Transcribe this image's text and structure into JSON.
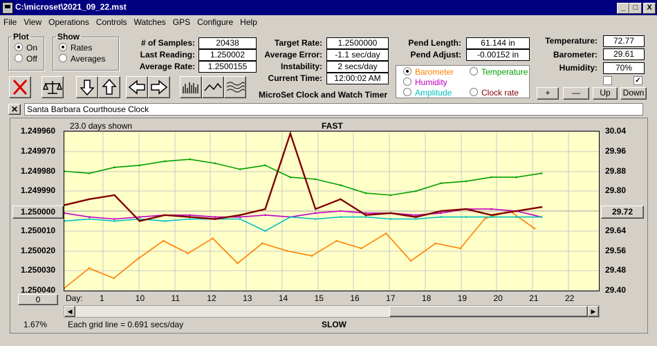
{
  "window": {
    "title": "C:\\microset\\2021_09_22.mst",
    "buttons": [
      "_",
      "□",
      "X"
    ]
  },
  "menu": [
    "File",
    "View",
    "Operations",
    "Controls",
    "Watches",
    "GPS",
    "Configure",
    "Help"
  ],
  "plot_group": {
    "legend": "Plot",
    "options": [
      "On",
      "Off"
    ],
    "selected": "On"
  },
  "show_group": {
    "legend": "Show",
    "options": [
      "Rates",
      "Averages"
    ],
    "selected": "Rates"
  },
  "stats1": {
    "samples_label": "# of Samples:",
    "samples": "20438",
    "last_label": "Last Reading:",
    "last": "1.250002",
    "avg_label": "Average Rate:",
    "avg": "1.2500155"
  },
  "stats2": {
    "target_label": "Target Rate:",
    "target": "1.2500000",
    "error_label": "Average Error:",
    "error": "-1.1 sec/day",
    "instab_label": "Instability:",
    "instab": "2 secs/day",
    "time_label": "Current Time:",
    "time": "12:00:02 AM"
  },
  "pend": {
    "length_label": "Pend Length:",
    "length": "61.144 in",
    "adjust_label": "Pend Adjust:",
    "adjust": "-0.00152 in"
  },
  "env": {
    "temp_label": "Temperature:",
    "temp": "72.77",
    "baro_label": "Barometer:",
    "baro": "29.61",
    "hum_label": "Humidity:",
    "hum": "70%"
  },
  "app_caption": "MicroSet Clock and Watch Timer",
  "series_select": {
    "selected": "Barometer",
    "items": [
      {
        "name": "Barometer",
        "color": "#ff8000"
      },
      {
        "name": "Temperature",
        "color": "#00a000"
      },
      {
        "name": "Humidity",
        "color": "#c000c0"
      },
      {
        "name": "Amplitude",
        "color": "#00c0c0"
      },
      {
        "name": "Clock rate",
        "color": "#800000"
      }
    ]
  },
  "scale_buttons": [
    "+",
    "—",
    "Up",
    "Down"
  ],
  "watch_name": "Santa Barbara Courthouse Clock",
  "chart": {
    "days_shown": "23.0 days shown",
    "top_label": "FAST",
    "bottom_label": "SLOW",
    "grid_note": "Each grid line = 0.691 secs/day",
    "percent": "1.67%",
    "day_prefix": "Day:",
    "left_ref_button": "1.250000",
    "right_ref_button": "29.72",
    "bottom_ref_button": "0"
  },
  "chart_data": {
    "type": "line",
    "xlabel": "Day",
    "x_ticks": [
      "1",
      "10",
      "11",
      "12",
      "13",
      "14",
      "15",
      "16",
      "17",
      "18",
      "19",
      "20",
      "21",
      "22"
    ],
    "y_left_ticks": [
      "1.249960",
      "1.249970",
      "1.249980",
      "1.249990",
      "1.250000",
      "1.250010",
      "1.250020",
      "1.250030",
      "1.250040"
    ],
    "y_right_ticks": [
      "30.04",
      "29.96",
      "29.88",
      "29.80",
      "29.72",
      "29.64",
      "29.56",
      "29.48",
      "29.40"
    ],
    "ylim_left": [
      1.25004,
      1.24996
    ],
    "ylim_right": [
      29.4,
      30.04
    ],
    "series": [
      {
        "name": "Temperature",
        "color": "#00a000",
        "values": [
          1.24998,
          1.249981,
          1.249978,
          1.249977,
          1.249975,
          1.249974,
          1.249976,
          1.249979,
          1.249977,
          1.249983,
          1.249984,
          1.249987,
          1.249991,
          1.249992,
          1.24999,
          1.249986,
          1.249985,
          1.249983,
          1.249983,
          1.249981
        ]
      },
      {
        "name": "Barometer",
        "color": "#ff8000",
        "values": [
          29.41,
          29.49,
          29.45,
          29.53,
          29.6,
          29.55,
          29.61,
          29.51,
          29.59,
          29.56,
          29.54,
          29.6,
          29.57,
          29.63,
          29.52,
          29.59,
          29.57,
          29.69,
          29.72,
          29.65
        ]
      },
      {
        "name": "Humidity",
        "color": "#c000c0",
        "values": [
          1.250001,
          1.250003,
          1.250004,
          1.250003,
          1.250002,
          1.250002,
          1.250003,
          1.250003,
          1.250002,
          1.250003,
          1.250001,
          1.25,
          1.250001,
          1.250001,
          1.250002,
          1.250001,
          1.249999,
          1.249999,
          1.25,
          1.250003
        ]
      },
      {
        "name": "Amplitude",
        "color": "#00c0c0",
        "values": [
          1.250005,
          1.250004,
          1.250005,
          1.250004,
          1.250005,
          1.250004,
          1.250004,
          1.250004,
          1.25001,
          1.250003,
          1.250004,
          1.250003,
          1.250003,
          1.250004,
          1.250004,
          1.250003,
          1.250003,
          1.250003,
          1.250003,
          1.250003
        ]
      },
      {
        "name": "Clock rate",
        "color": "#800000",
        "values": [
          1.249997,
          1.249994,
          1.249992,
          1.250005,
          1.250002,
          1.250003,
          1.250004,
          1.250002,
          1.249999,
          1.249961,
          1.249999,
          1.249994,
          1.250002,
          1.250001,
          1.250003,
          1.25,
          1.249999,
          1.250002,
          1.25,
          1.249998
        ]
      }
    ]
  }
}
